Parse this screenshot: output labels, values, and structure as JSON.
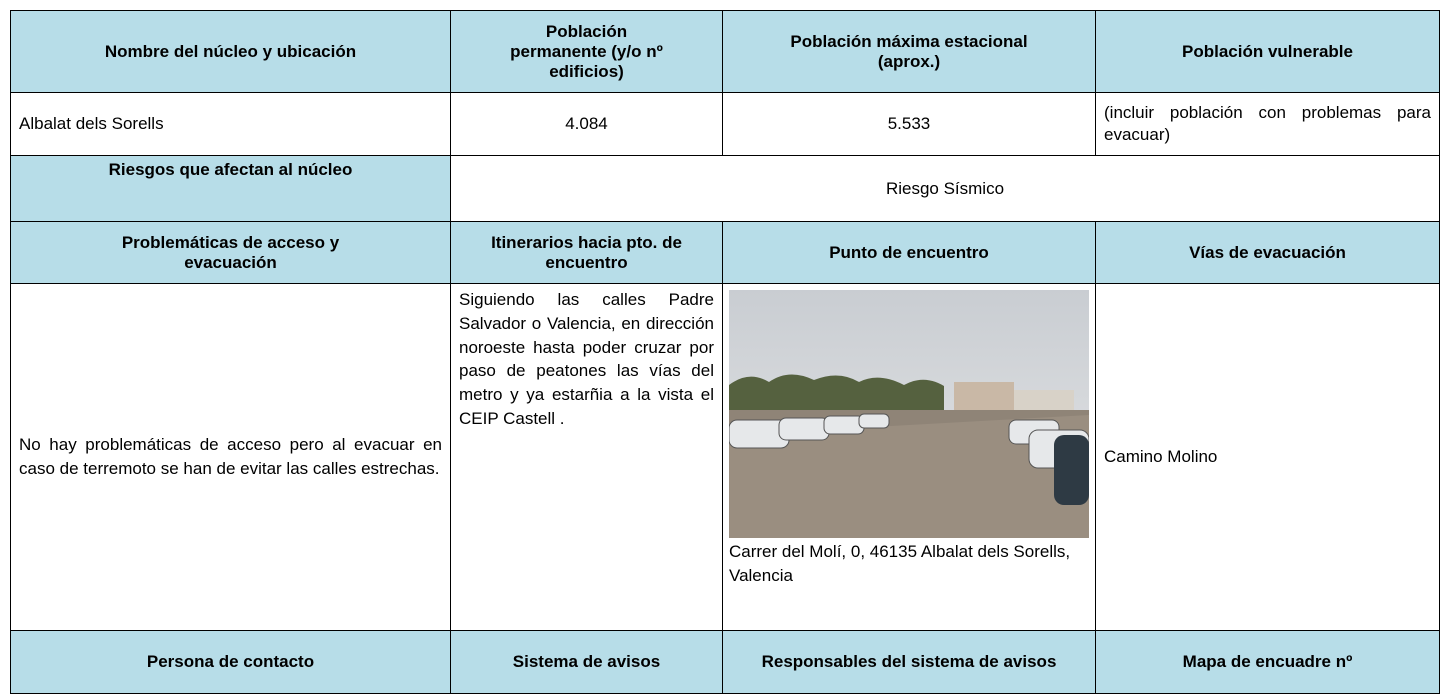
{
  "table": {
    "header": [
      "Nombre del núcleo y ubicación",
      "Población permanente (y/o nº edificios)",
      "Población máxima estacional (aprox.)",
      "Población vulnerable"
    ],
    "row1": [
      "Albalat dels Sorells",
      "4.084",
      "5.533",
      "(incluir población con problemas para evacuar)"
    ],
    "risks": {
      "label": "Riesgos que afectan al núcleo",
      "value": "Riesgo Sísmico"
    },
    "header2": [
      "Problemáticas de acceso y evacuación",
      "Itinerarios hacia pto. de encuentro",
      "Punto de encuentro",
      "Vías de evacuación"
    ],
    "row2": {
      "problems": "No hay problemáticas de acceso pero al evacuar en caso de terremoto se han de evitar las calles estrechas.",
      "itinerary": "Siguiendo las calles Padre Salvador o Valencia, en dirección noroeste hasta poder cruzar por paso de peatones las vías del metro y ya estarñia a la vista el CEIP Castell .",
      "meeting_point_caption": "Carrer del Molí, 0, 46135 Albalat dels Sorells, Valencia",
      "evacuation_routes": "Camino Molino"
    },
    "header3": [
      "Persona de contacto",
      "Sistema de avisos",
      "Responsables del sistema de avisos",
      "Mapa de encuadre nº"
    ]
  }
}
